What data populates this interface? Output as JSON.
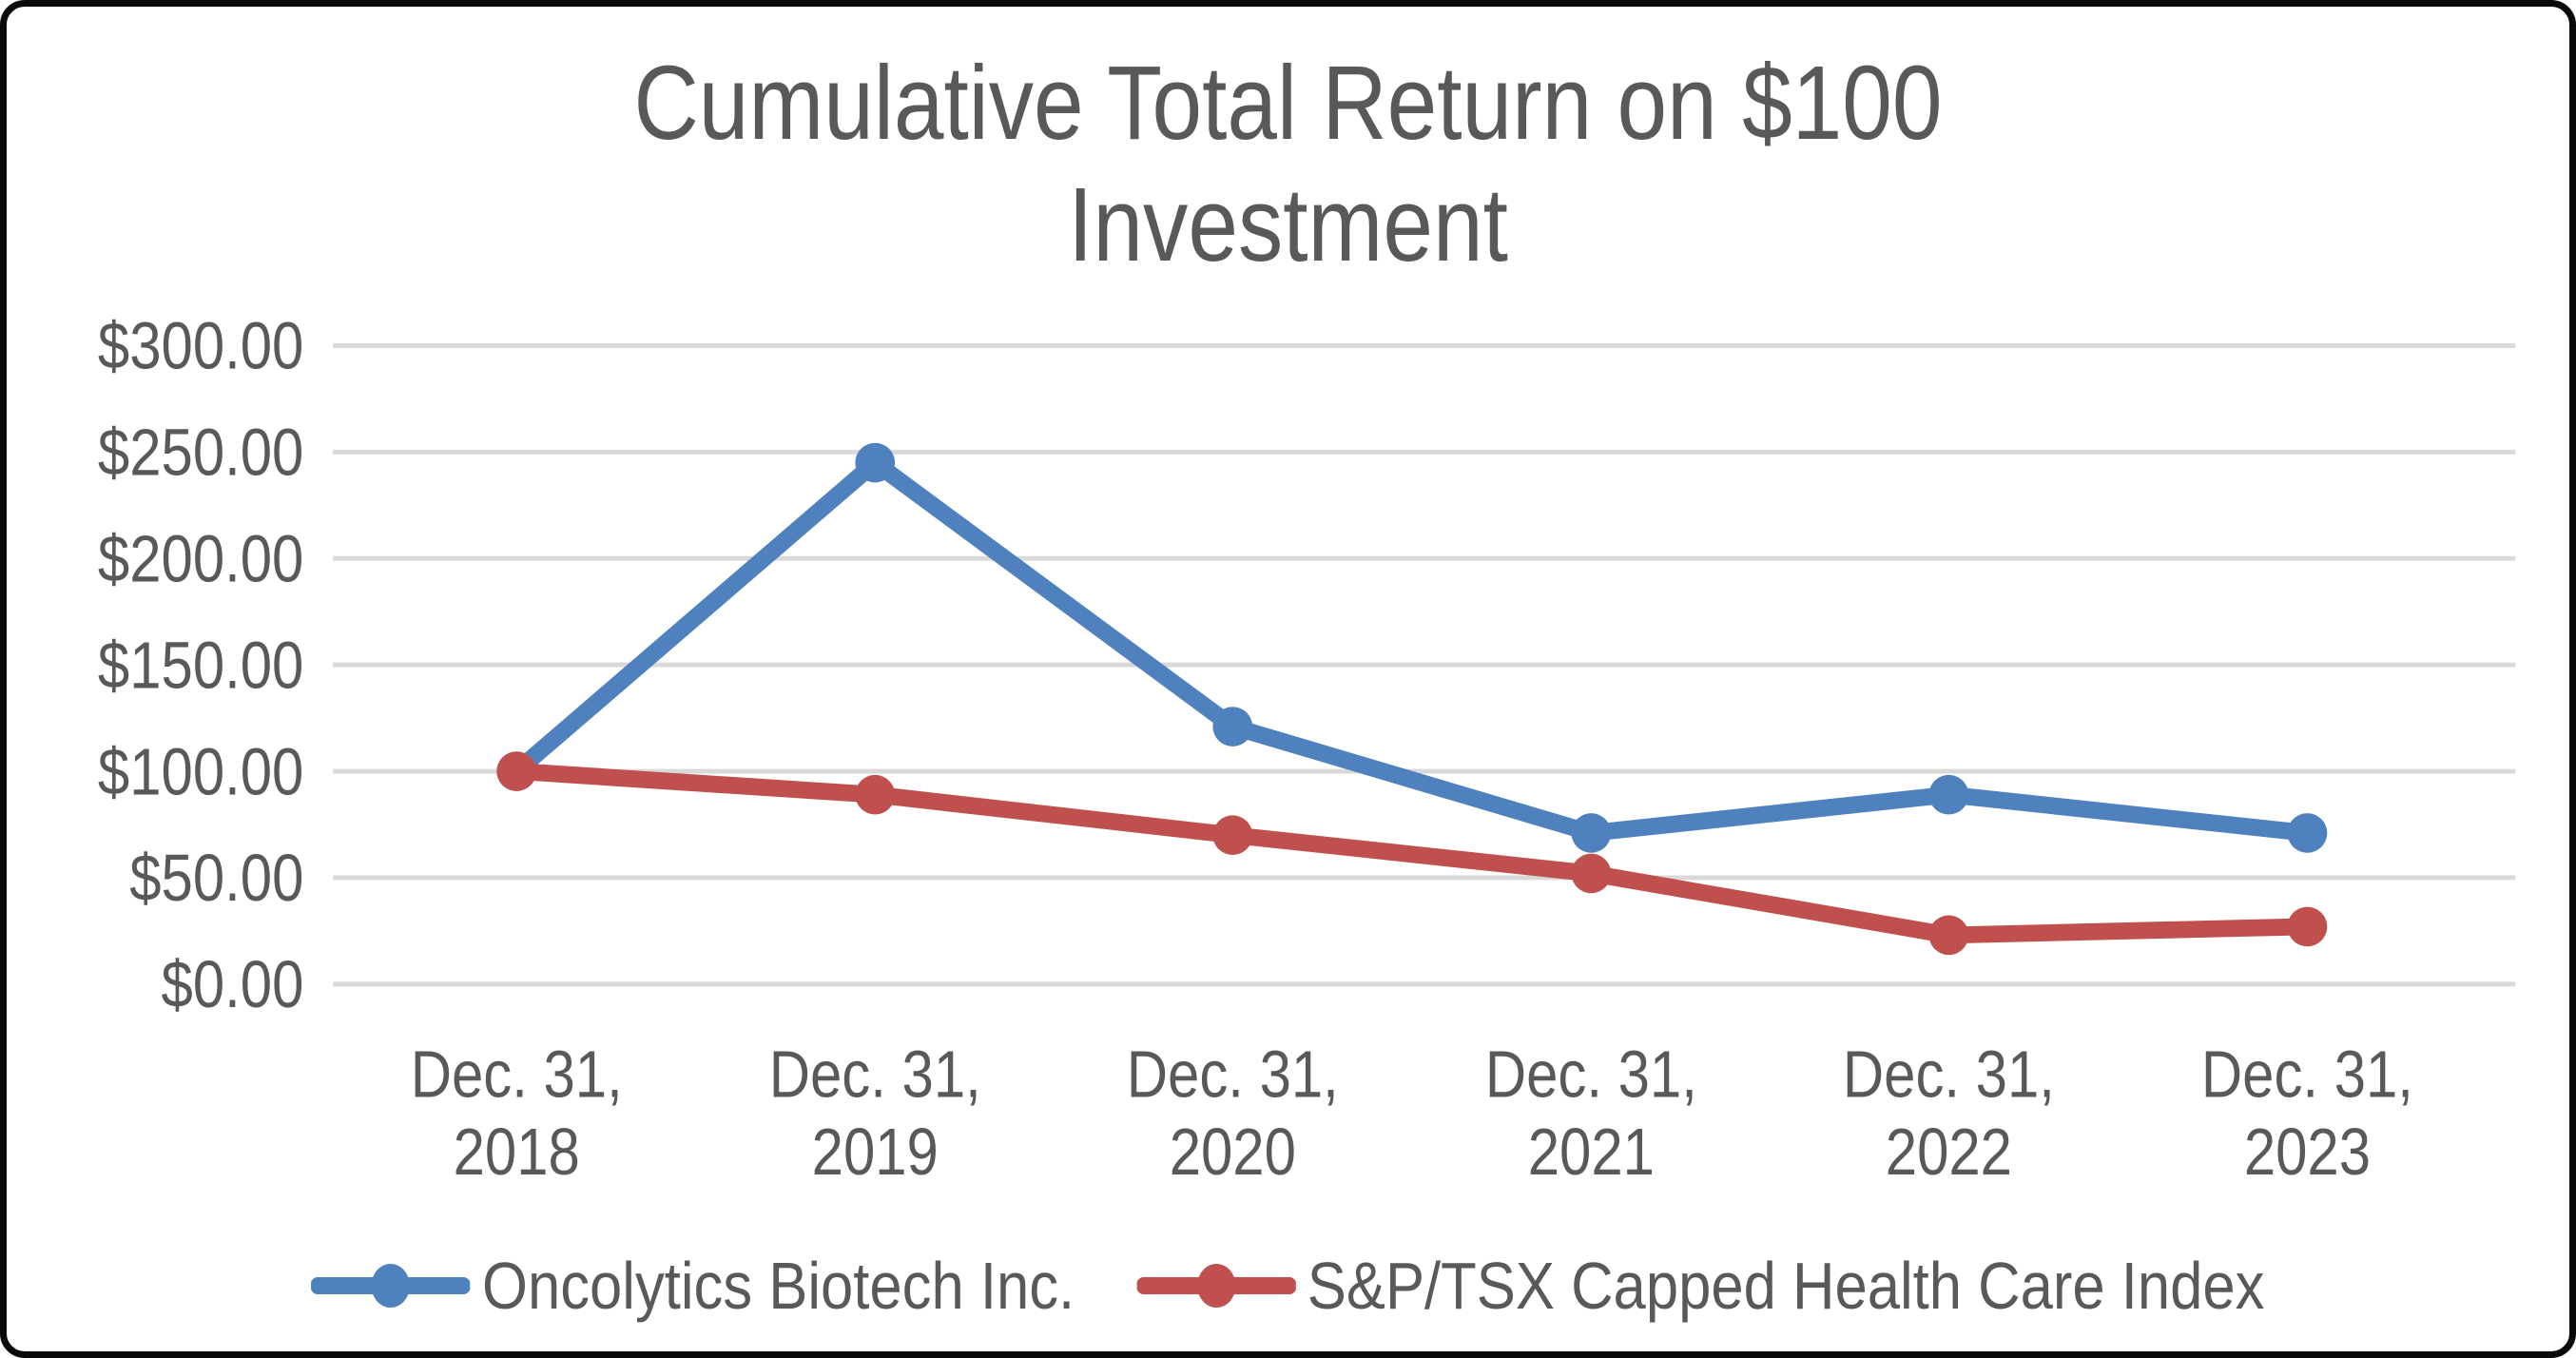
{
  "title": {
    "line1": "Cumulative Total Return on $100",
    "line2": "Investment"
  },
  "chart_data": {
    "type": "line",
    "title": "Cumulative Total Return on $100 Investment",
    "categories": [
      "Dec. 31, 2018",
      "Dec. 31, 2019",
      "Dec. 31, 2020",
      "Dec. 31, 2021",
      "Dec. 31, 2022",
      "Dec. 31, 2023"
    ],
    "series": [
      {
        "name": "Oncolytics Biotech Inc.",
        "color": "#4E81BD",
        "values": [
          100,
          245,
          121,
          71,
          89,
          71
        ]
      },
      {
        "name": "S&P/TSX Capped Health Care Index",
        "color": "#C0504D",
        "values": [
          100,
          89,
          70,
          52,
          23,
          27
        ]
      }
    ],
    "ylim": [
      0,
      300
    ],
    "ytick_step": 50,
    "ytick_labels": [
      "$0.00",
      "$50.00",
      "$100.00",
      "$150.00",
      "$200.00",
      "$250.00",
      "$300.00"
    ],
    "grid": "horizontal-only",
    "gridline_color": "#D9D9D9",
    "axis_text_color": "#595959",
    "legend_position": "bottom",
    "marker": "circle"
  }
}
